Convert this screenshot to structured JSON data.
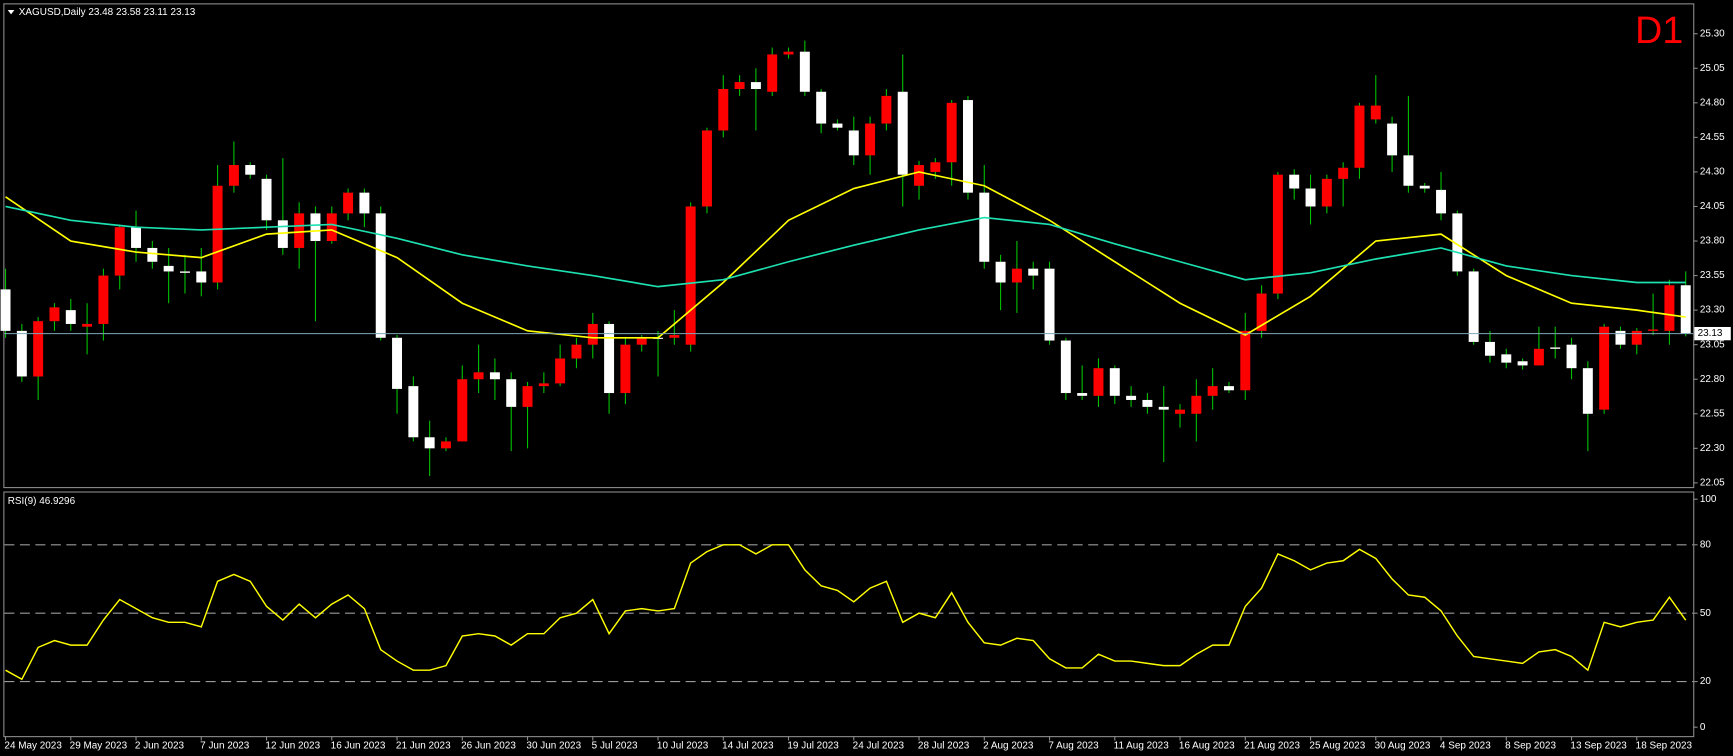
{
  "chart_data": [
    {
      "type": "candlestick",
      "title": "XAGUSD,Daily  23.48 23.58 23.11 23.13",
      "badge": "D1",
      "categories": [
        "24 May 2023",
        null,
        null,
        null,
        "29 May 2023",
        null,
        null,
        null,
        "2 Jun 2023",
        null,
        null,
        null,
        "7 Jun 2023",
        null,
        null,
        null,
        "12 Jun 2023",
        null,
        null,
        null,
        "16 Jun 2023",
        null,
        null,
        null,
        "21 Jun 2023",
        null,
        null,
        null,
        "26 Jun 2023",
        null,
        null,
        null,
        "30 Jun 2023",
        null,
        null,
        null,
        "5 Jul 2023",
        null,
        null,
        null,
        "10 Jul 2023",
        null,
        null,
        null,
        "14 Jul 2023",
        null,
        null,
        null,
        "19 Jul 2023",
        null,
        null,
        null,
        "24 Jul 2023",
        null,
        null,
        null,
        "28 Jul 2023",
        null,
        null,
        null,
        "2 Aug 2023",
        null,
        null,
        null,
        "7 Aug 2023",
        null,
        null,
        null,
        "11 Aug 2023",
        null,
        null,
        null,
        "16 Aug 2023",
        null,
        null,
        null,
        "21 Aug 2023",
        null,
        null,
        null,
        "25 Aug 2023",
        null,
        null,
        null,
        "30 Aug 2023",
        null,
        null,
        null,
        "4 Sep 2023",
        null,
        null,
        null,
        "8 Sep 2023",
        null,
        null,
        null,
        "13 Sep 2023",
        null,
        null,
        null,
        "18 Sep 2023",
        null,
        null,
        null
      ],
      "open": [
        23.45,
        23.15,
        22.82,
        23.22,
        23.3,
        23.18,
        23.2,
        23.55,
        23.9,
        23.75,
        23.62,
        23.58,
        23.58,
        23.5,
        24.2,
        24.35,
        24.25,
        23.95,
        23.75,
        24.0,
        23.8,
        24.0,
        24.15,
        24.0,
        23.1,
        22.75,
        22.38,
        22.3,
        22.35,
        22.8,
        22.85,
        22.8,
        22.6,
        22.75,
        22.77,
        22.95,
        23.05,
        23.2,
        22.7,
        23.05,
        23.1,
        23.1,
        23.05,
        24.05,
        24.6,
        24.9,
        24.95,
        24.88,
        25.15,
        25.17,
        24.88,
        24.65,
        24.6,
        24.42,
        24.65,
        24.88,
        24.2,
        24.3,
        24.37,
        24.82,
        24.15,
        23.65,
        23.5,
        23.6,
        23.6,
        23.08,
        22.7,
        22.68,
        22.88,
        22.68,
        22.65,
        22.6,
        22.55,
        22.55,
        22.68,
        22.75,
        22.72,
        23.15,
        23.42,
        24.28,
        24.18,
        24.05,
        24.25,
        24.33,
        24.68,
        24.65,
        24.42,
        24.2,
        24.17,
        24.0,
        23.58,
        23.07,
        22.98,
        22.93,
        22.9,
        23.03,
        23.05,
        22.88,
        22.58,
        23.15,
        23.05,
        23.15,
        23.15,
        23.48
      ],
      "high": [
        23.6,
        23.2,
        23.25,
        23.35,
        23.38,
        23.35,
        23.6,
        23.92,
        24.02,
        23.8,
        23.75,
        23.7,
        23.75,
        24.35,
        24.52,
        24.37,
        24.28,
        24.4,
        24.08,
        24.05,
        24.05,
        24.18,
        24.18,
        24.05,
        23.12,
        22.82,
        22.5,
        22.38,
        22.9,
        23.05,
        22.95,
        22.85,
        22.78,
        22.85,
        23.05,
        23.1,
        23.28,
        23.22,
        23.1,
        23.12,
        23.15,
        23.3,
        24.08,
        24.62,
        25.0,
        25.0,
        25.05,
        25.2,
        25.2,
        25.25,
        24.9,
        24.68,
        24.7,
        24.7,
        24.9,
        25.15,
        24.38,
        24.4,
        24.82,
        24.85,
        24.35,
        23.7,
        23.8,
        23.65,
        23.65,
        23.1,
        22.9,
        22.95,
        22.9,
        22.75,
        22.7,
        22.75,
        22.62,
        22.8,
        22.88,
        22.78,
        23.28,
        23.48,
        24.3,
        24.32,
        24.28,
        24.28,
        24.37,
        24.8,
        25.0,
        24.7,
        24.85,
        24.22,
        24.3,
        24.02,
        23.6,
        23.15,
        23.02,
        22.95,
        23.18,
        23.18,
        23.1,
        22.93,
        23.2,
        23.18,
        23.17,
        23.42,
        23.52,
        23.58
      ],
      "low": [
        23.1,
        22.78,
        22.65,
        23.15,
        23.15,
        22.98,
        23.08,
        23.45,
        23.65,
        23.6,
        23.35,
        23.42,
        23.4,
        23.45,
        24.15,
        24.25,
        23.88,
        23.7,
        23.6,
        23.22,
        23.78,
        23.95,
        23.9,
        23.08,
        22.55,
        22.35,
        22.1,
        22.28,
        22.35,
        22.7,
        22.65,
        22.28,
        22.3,
        22.7,
        22.75,
        22.88,
        22.95,
        22.55,
        22.62,
        23.0,
        22.82,
        23.05,
        23.0,
        24.0,
        24.55,
        24.85,
        24.6,
        24.85,
        25.12,
        24.85,
        24.58,
        24.6,
        24.35,
        24.28,
        24.6,
        24.05,
        24.1,
        24.25,
        24.2,
        24.1,
        23.6,
        23.3,
        23.28,
        23.45,
        23.05,
        22.65,
        22.65,
        22.6,
        22.62,
        22.6,
        22.55,
        22.2,
        22.45,
        22.35,
        22.58,
        22.7,
        22.65,
        23.1,
        23.38,
        24.1,
        23.92,
        24.0,
        24.05,
        24.25,
        24.65,
        24.3,
        24.15,
        24.15,
        23.95,
        23.55,
        23.05,
        22.92,
        22.88,
        22.87,
        22.9,
        22.95,
        22.8,
        22.28,
        22.55,
        23.02,
        22.98,
        23.12,
        23.05,
        23.11
      ],
      "close": [
        23.15,
        22.82,
        23.22,
        23.32,
        23.2,
        23.2,
        23.55,
        23.9,
        23.75,
        23.65,
        23.58,
        23.57,
        23.5,
        24.2,
        24.35,
        24.28,
        23.95,
        23.75,
        24.0,
        23.8,
        24.0,
        24.15,
        24.0,
        23.1,
        22.73,
        22.38,
        22.3,
        22.35,
        22.8,
        22.85,
        22.8,
        22.6,
        22.75,
        22.77,
        22.95,
        23.05,
        23.2,
        22.7,
        23.05,
        23.1,
        23.1,
        23.12,
        24.05,
        24.6,
        24.9,
        24.95,
        24.9,
        25.15,
        25.17,
        24.88,
        24.65,
        24.62,
        24.42,
        24.65,
        24.85,
        24.28,
        24.35,
        24.37,
        24.8,
        24.15,
        23.65,
        23.5,
        23.6,
        23.55,
        23.08,
        22.7,
        22.68,
        22.88,
        22.68,
        22.65,
        22.6,
        22.58,
        22.58,
        22.68,
        22.75,
        22.72,
        23.15,
        23.42,
        24.28,
        24.18,
        24.05,
        24.25,
        24.33,
        24.78,
        24.78,
        24.42,
        24.2,
        24.18,
        24.0,
        23.58,
        23.07,
        22.97,
        22.92,
        22.9,
        23.02,
        23.02,
        22.88,
        22.55,
        23.18,
        23.05,
        23.15,
        23.16,
        23.48,
        23.13
      ],
      "up_color": "#ff0000",
      "down_color": "#ffffff",
      "wick_color": "#00c000",
      "series": [
        {
          "color": "#ffff00",
          "x": [
            0,
            4,
            8,
            12,
            16,
            20,
            24,
            28,
            32,
            36,
            40,
            44,
            48,
            52,
            56,
            60,
            64,
            68,
            72,
            76,
            80,
            84,
            88,
            92,
            96,
            100,
            103
          ],
          "values": [
            24.12,
            23.8,
            23.72,
            23.68,
            23.85,
            23.88,
            23.68,
            23.35,
            23.15,
            23.1,
            23.1,
            23.5,
            23.95,
            24.18,
            24.3,
            24.2,
            23.95,
            23.65,
            23.35,
            23.12,
            23.4,
            23.8,
            23.85,
            23.55,
            23.35,
            23.3,
            23.25
          ]
        },
        {
          "color": "#1de0b0",
          "x": [
            0,
            4,
            8,
            12,
            16,
            20,
            24,
            28,
            32,
            36,
            40,
            44,
            48,
            52,
            56,
            60,
            64,
            68,
            72,
            76,
            80,
            84,
            88,
            92,
            96,
            100,
            103
          ],
          "values": [
            24.05,
            23.95,
            23.9,
            23.88,
            23.9,
            23.92,
            23.82,
            23.7,
            23.62,
            23.55,
            23.47,
            23.52,
            23.65,
            23.77,
            23.88,
            23.97,
            23.92,
            23.78,
            23.65,
            23.52,
            23.57,
            23.67,
            23.75,
            23.62,
            23.55,
            23.5,
            23.5
          ]
        }
      ],
      "last_price": 23.13,
      "ylim": [
        22.02,
        25.52
      ],
      "yticks": [
        22.05,
        {
          "value": 22.3,
          "label": "22.30"
        },
        22.55,
        {
          "value": 22.8,
          "label": "22.80"
        },
        23.05,
        {
          "value": 23.3,
          "label": "23.30"
        },
        23.55,
        {
          "value": 23.8,
          "label": "23.80"
        },
        24.05,
        {
          "value": 24.3,
          "label": "24.30"
        },
        24.55,
        {
          "value": 24.8,
          "label": "24.80"
        },
        25.05,
        {
          "value": 25.3,
          "label": "25.30"
        }
      ]
    },
    {
      "type": "line",
      "title": "RSI(9) 46.9296",
      "color": "#ffff00",
      "values": [
        25,
        21,
        35,
        38,
        36,
        36,
        47,
        56,
        52,
        48,
        46,
        46,
        44,
        64,
        67,
        64,
        53,
        47,
        54,
        48,
        54,
        58,
        52,
        34,
        29,
        25,
        25,
        27,
        40,
        41,
        40,
        36,
        41,
        41,
        48,
        50,
        56,
        41,
        51,
        52,
        51,
        52,
        72,
        77,
        80,
        80,
        76,
        80,
        80,
        69,
        62,
        60,
        55,
        61,
        64,
        46,
        50,
        48,
        59,
        46,
        37,
        36,
        39,
        38,
        30,
        26,
        26,
        32,
        29,
        29,
        28,
        27,
        27,
        32,
        36,
        36,
        53,
        61,
        76,
        73,
        69,
        72,
        73,
        78,
        74,
        65,
        58,
        57,
        51,
        40,
        31,
        30,
        29,
        28,
        33,
        34,
        31,
        25,
        46,
        44,
        46,
        47,
        57,
        46.93
      ],
      "ylim": [
        -3.9,
        103.4
      ],
      "yticks": [
        0,
        20,
        50,
        80,
        100
      ],
      "levels": [
        20,
        50,
        80
      ]
    }
  ]
}
